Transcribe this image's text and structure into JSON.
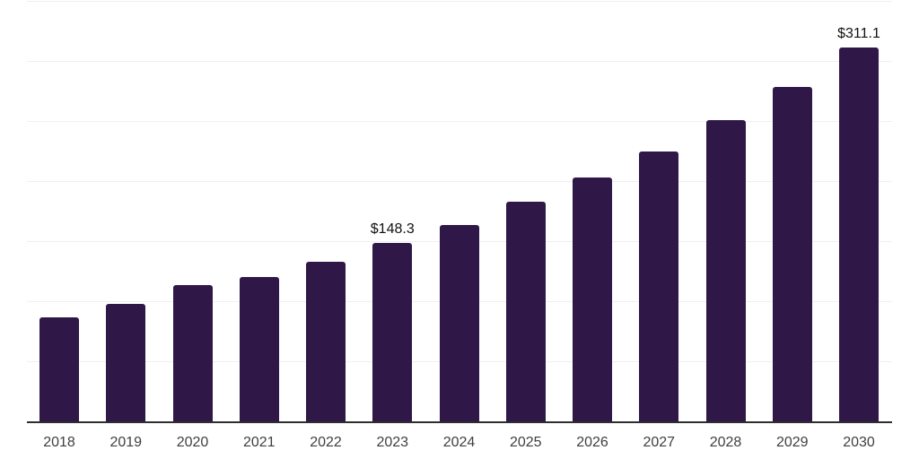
{
  "chart_data": {
    "type": "bar",
    "title": "",
    "xlabel": "",
    "ylabel": "",
    "categories": [
      "2018",
      "2019",
      "2020",
      "2021",
      "2022",
      "2023",
      "2024",
      "2025",
      "2026",
      "2027",
      "2028",
      "2029",
      "2030"
    ],
    "values": [
      86.6,
      97.8,
      113.1,
      120.5,
      133.2,
      148.3,
      163.8,
      182.8,
      203.0,
      225.0,
      250.4,
      278.7,
      311.1
    ],
    "data_labels": [
      "",
      "",
      "",
      "",
      "",
      "$148.3",
      "",
      "",
      "",
      "",
      "",
      "",
      "$311.1"
    ],
    "ylim": [
      0,
      350
    ],
    "gridline_step": 50,
    "grid": true,
    "y_tick_labels_visible": false,
    "legend_position": "none",
    "colors": {
      "bar": "#2f1847",
      "axis_line": "#2e2e2e",
      "gridline": "#efefef",
      "tick_label": "#3f3f3f",
      "data_label": "#111111",
      "background": "#ffffff"
    }
  }
}
